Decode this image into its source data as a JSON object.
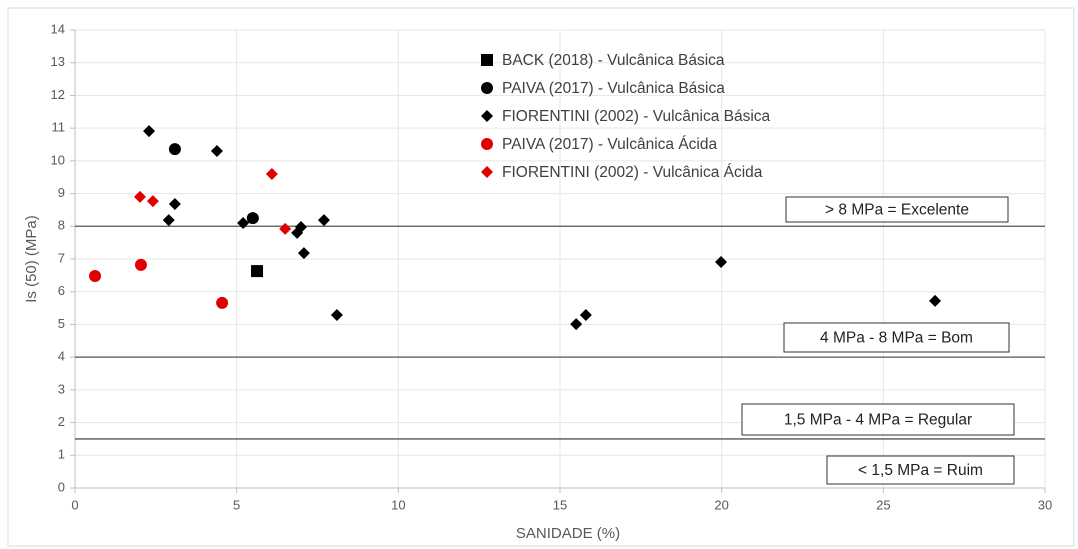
{
  "chart_data": {
    "type": "scatter",
    "x_label": "SANIDADE (%)",
    "y_label": "Is (50) (MPa)",
    "xlim": [
      0,
      30
    ],
    "xticks": [
      0,
      5,
      10,
      15,
      20,
      25,
      30
    ],
    "ylim": [
      0,
      14
    ],
    "yticks": [
      0,
      1,
      2,
      3,
      4,
      5,
      6,
      7,
      8,
      9,
      10,
      11,
      12,
      13,
      14
    ],
    "grid": true,
    "legend": "top",
    "hlines": [
      8,
      4,
      1.5
    ],
    "annotations": [
      "> 8 MPa = Excelente",
      "4 MPa - 8 MPa = Bom",
      "1,5 MPa - 4 MPa = Regular",
      "< 1,5 MPa = Ruim"
    ],
    "series": [
      {
        "name": "BACK (2018) - Vulcânica Básica",
        "color": "#000000",
        "marker": "square",
        "x": [
          5.63
        ],
        "values": [
          6.63
        ]
      },
      {
        "name": "PAIVA (2017) - Vulcânica Básica",
        "color": "#000000",
        "marker": "circle",
        "x": [
          3.09,
          5.5
        ],
        "values": [
          10.36,
          8.25
        ]
      },
      {
        "name": "FIORENTINI (2002) - Vulcânica Básica",
        "color": "#000000",
        "marker": "diamond",
        "x": [
          2.29,
          4.39,
          3.09,
          2.9,
          5.2,
          6.99,
          6.87,
          7.7,
          7.08,
          8.1,
          15.5,
          15.8,
          19.98,
          26.6
        ],
        "values": [
          10.91,
          10.3,
          8.68,
          8.19,
          8.1,
          7.98,
          7.8,
          8.19,
          7.18,
          5.29,
          5.01,
          5.29,
          6.91,
          5.72
        ]
      },
      {
        "name": "PAIVA (2017) - Vulcânica Ácida",
        "color": "#e00000",
        "marker": "circle",
        "x": [
          0.62,
          2.04,
          4.55
        ],
        "values": [
          6.48,
          6.82,
          5.66
        ]
      },
      {
        "name": "FIORENTINI (2002) - Vulcânica Ácida",
        "color": "#e00000",
        "marker": "diamond",
        "x": [
          2.01,
          2.41,
          6.09,
          6.5
        ],
        "values": [
          8.9,
          8.77,
          9.6,
          7.92
        ]
      }
    ]
  }
}
